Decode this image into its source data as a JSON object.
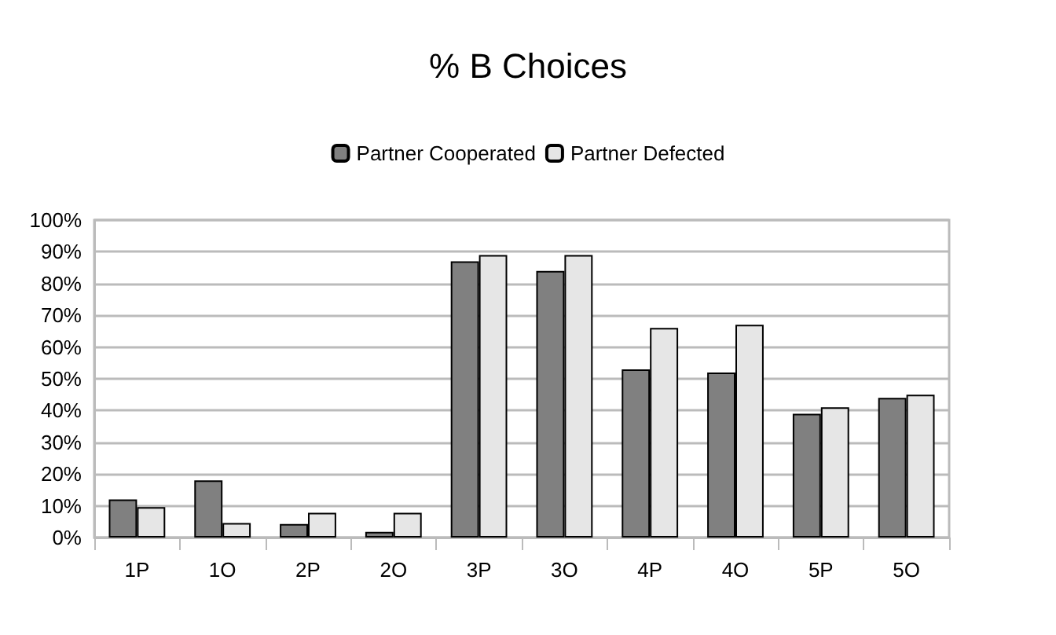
{
  "chart_data": {
    "type": "bar",
    "title": "% B Choices",
    "categories": [
      "1P",
      "1O",
      "2P",
      "2O",
      "3P",
      "3O",
      "4P",
      "4O",
      "5P",
      "5O"
    ],
    "series": [
      {
        "name": "Partner Cooperated",
        "color": "#808080",
        "values": [
          12,
          18,
          4.3,
          1.8,
          87,
          84,
          53,
          52,
          39,
          44
        ]
      },
      {
        "name": "Partner Defected",
        "color": "#e6e6e6",
        "values": [
          9.6,
          4.6,
          7.8,
          7.8,
          89,
          89,
          66,
          67,
          41,
          45
        ]
      }
    ],
    "ylim": [
      0,
      100
    ],
    "yticks": [
      {
        "value": 0,
        "label": "0%"
      },
      {
        "value": 10,
        "label": "10%"
      },
      {
        "value": 20,
        "label": "20%"
      },
      {
        "value": 30,
        "label": "30%"
      },
      {
        "value": 40,
        "label": "40%"
      },
      {
        "value": 50,
        "label": "50%"
      },
      {
        "value": 60,
        "label": "60%"
      },
      {
        "value": 70,
        "label": "70%"
      },
      {
        "value": 80,
        "label": "80%"
      },
      {
        "value": 90,
        "label": "90%"
      },
      {
        "value": 100,
        "label": "100%"
      }
    ],
    "grid": "y",
    "legend": "top"
  }
}
